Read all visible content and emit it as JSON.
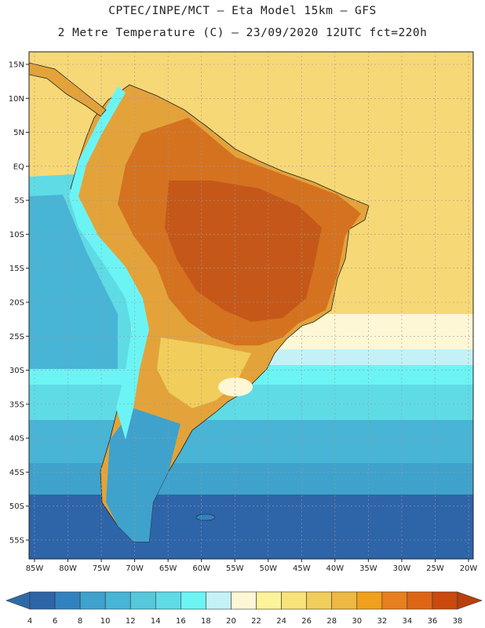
{
  "header": {
    "line1": "CPTEC/INPE/MCT –  Eta Model 15km – GFS",
    "line2": "2 Metre Temperature (C) – 23/09/2020 12UTC fct=220h"
  },
  "axes": {
    "lat_labels": [
      "15N",
      "10N",
      "5N",
      "EQ",
      "5S",
      "10S",
      "15S",
      "20S",
      "25S",
      "30S",
      "35S",
      "40S",
      "45S",
      "50S",
      "55S"
    ],
    "lon_labels": [
      "85W",
      "80W",
      "75W",
      "70W",
      "65W",
      "60W",
      "55W",
      "50W",
      "45W",
      "40W",
      "35W",
      "30W",
      "25W",
      "20W"
    ]
  },
  "colorbar": {
    "ticks": [
      "4",
      "6",
      "8",
      "10",
      "12",
      "14",
      "16",
      "18",
      "20",
      "22",
      "24",
      "26",
      "28",
      "30",
      "32",
      "34",
      "36",
      "38"
    ],
    "colors": [
      "#2e64a8",
      "#3282bf",
      "#3ea2cc",
      "#48b4d6",
      "#55c8dc",
      "#5fdbe6",
      "#6cf4f4",
      "#c4f1f6",
      "#fdf7d6",
      "#fdf39a",
      "#f9e27a",
      "#f1cd5b",
      "#edb844",
      "#f0a01c",
      "#e67f1e",
      "#dd6616",
      "#c9490f"
    ],
    "under_color": "#2e6ba6",
    "over_color": "#b8410e"
  },
  "map": {
    "ocean_color": "#f7d877",
    "land_far_color": "#e3a33a",
    "land_hot_color": "#d5721f",
    "land_core_color": "#c55819",
    "south_ocean_color": "#3ea2cc",
    "deep_south_color": "#2e64a8",
    "andes_color": "#6cf4f4"
  }
}
